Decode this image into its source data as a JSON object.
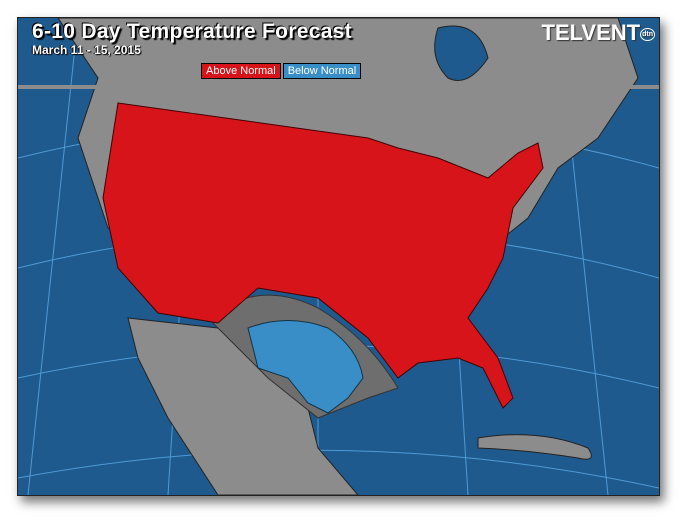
{
  "header": {
    "title": "6-10 Day Temperature Forecast",
    "date_range": "March 11 - 15, 2015",
    "logo": "TELVENT dtn"
  },
  "legend": [
    {
      "label": "Above Normal",
      "color": "#d7141a"
    },
    {
      "label": "Below Normal",
      "color": "#3a8ec8"
    }
  ],
  "colors": {
    "ocean": "#1f5a8e",
    "land": "#8c8c8c",
    "near_normal": "#6e6e6e",
    "above": "#d7141a",
    "below": "#3a8ec8",
    "grid": "#4f9ad6"
  }
}
